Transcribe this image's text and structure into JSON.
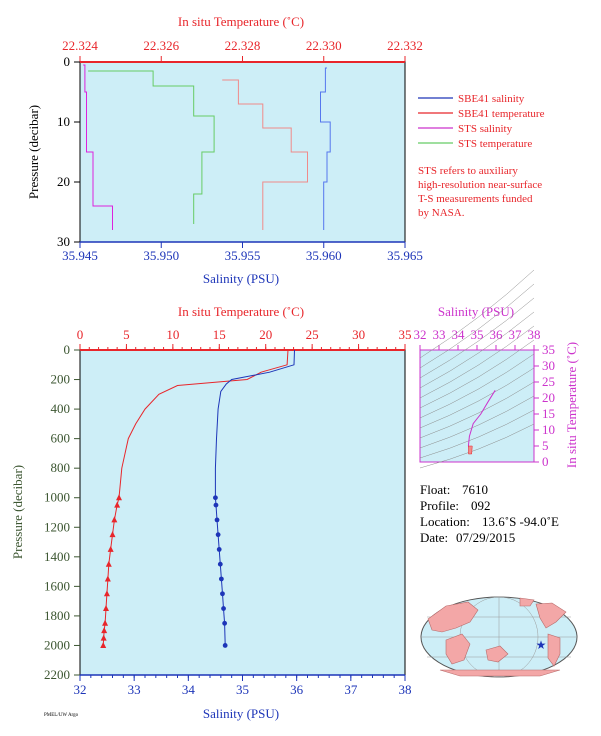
{
  "colors": {
    "panel_bg": "#cdeef7",
    "red": "#e8262b",
    "blue": "#1d35b8",
    "green_axis": "#3b5530",
    "magenta": "#cc33cc",
    "sts_salinity": "#dd22dd",
    "sts_temperature": "#66cc66",
    "sbe41_temperature_light": "#f08a8a",
    "sbe41_salinity_light": "#5577ee"
  },
  "top_panel": {
    "top_axis_label": "In situ Temperature (˚C)",
    "bottom_axis_label": "Salinity (PSU)",
    "left_axis_label": "Pressure (decibar)",
    "top_ticks": [
      "22.324",
      "22.326",
      "22.328",
      "22.330",
      "22.332"
    ],
    "bottom_ticks": [
      "35.945",
      "35.950",
      "35.955",
      "35.960",
      "35.965"
    ],
    "left_ticks": [
      "0",
      "10",
      "20",
      "30"
    ],
    "legend": [
      {
        "label": "SBE41 salinity",
        "color": "#1d35b8"
      },
      {
        "label": "SBE41 temperature",
        "color": "#e8262b"
      },
      {
        "label": "STS salinity",
        "color": "#cc33cc"
      },
      {
        "label": "STS temperature",
        "color": "#66cc66"
      }
    ],
    "note_lines": [
      "STS refers to auxiliary",
      "high-resolution near-surface",
      "T-S measurements funded",
      "by NASA."
    ]
  },
  "main_panel": {
    "top_axis_label": "In situ Temperature (˚C)",
    "bottom_axis_label": "Salinity (PSU)",
    "left_axis_label": "Pressure (decibar)",
    "top_ticks": [
      "0",
      "5",
      "10",
      "15",
      "20",
      "25",
      "30",
      "35"
    ],
    "bottom_ticks": [
      "32",
      "33",
      "34",
      "35",
      "36",
      "37",
      "38"
    ],
    "left_ticks": [
      "0",
      "200",
      "400",
      "600",
      "800",
      "1000",
      "1200",
      "1400",
      "1600",
      "1800",
      "2000",
      "2200"
    ]
  },
  "ts_panel": {
    "top_axis_label": "Salinity (PSU)",
    "right_axis_label": "In situ Temperature (˚C)",
    "top_ticks": [
      "32",
      "33",
      "34",
      "35",
      "36",
      "37",
      "38"
    ],
    "right_ticks": [
      "0",
      "5",
      "10",
      "15",
      "20",
      "25",
      "30",
      "35"
    ]
  },
  "info": {
    "float_label": "Float:",
    "float_value": "7610",
    "profile_label": "Profile:",
    "profile_value": "092",
    "location_label": "Location:",
    "location_value": "13.6˚S  -94.0˚E",
    "date_label": "Date:",
    "date_value": "07/29/2015"
  },
  "footer_tag": "PMEL/UW Argo",
  "chart_data": [
    {
      "type": "line",
      "panel": "top",
      "description_axes": {
        "x_top": "In situ Temperature (˚C)",
        "x_bottom": "Salinity (PSU)",
        "y": "Pressure (decibar)"
      },
      "xlim_temperature": [
        22.324,
        22.332
      ],
      "xlim_salinity": [
        35.945,
        35.965
      ],
      "ylim": [
        30,
        0
      ],
      "series": [
        {
          "name": "SBE41 salinity",
          "x": [
            35.9602,
            35.9601,
            35.9598,
            35.9604,
            35.9602,
            35.96
          ],
          "y": [
            1,
            5,
            10,
            15,
            20,
            28
          ]
        },
        {
          "name": "SBE41 temperature",
          "x": [
            22.3275,
            22.3279,
            22.3285,
            22.3292,
            22.3296,
            22.3285
          ],
          "y": [
            3,
            7,
            11,
            15,
            20,
            28
          ]
        },
        {
          "name": "STS salinity",
          "x": [
            35.9452,
            35.9453,
            35.9454,
            35.9458,
            35.947
          ],
          "y": [
            0.5,
            5,
            15,
            24,
            28
          ]
        },
        {
          "name": "STS temperature",
          "x": [
            22.3242,
            22.3258,
            22.3268,
            22.3273,
            22.327,
            22.3268
          ],
          "y": [
            1.5,
            4,
            9,
            15,
            22,
            27
          ]
        }
      ]
    },
    {
      "type": "line",
      "panel": "main",
      "xlim_temperature": [
        0,
        35
      ],
      "xlim_salinity": [
        32,
        38
      ],
      "ylim": [
        2200,
        0
      ],
      "series": [
        {
          "name": "SBE41 temperature",
          "temperature": [
            22.4,
            22.3,
            19.5,
            18.0,
            10.5,
            8.5,
            7.0,
            6.0,
            5.2,
            4.5,
            4.2,
            4.0,
            3.7,
            3.5,
            3.3,
            3.1,
            3.0,
            2.9,
            2.8,
            2.7,
            2.6,
            2.55,
            2.5
          ],
          "pressure": [
            0,
            100,
            150,
            200,
            240,
            300,
            400,
            500,
            600,
            800,
            1000,
            1050,
            1150,
            1250,
            1350,
            1450,
            1550,
            1650,
            1750,
            1850,
            1900,
            1950,
            2000
          ]
        },
        {
          "name": "SBE41 salinity",
          "salinity": [
            35.96,
            35.95,
            35.5,
            34.8,
            34.7,
            34.6,
            34.55,
            34.52,
            34.5,
            34.5,
            34.51,
            34.53,
            34.55,
            34.57,
            34.59,
            34.61,
            34.63,
            34.65,
            34.67,
            34.68
          ],
          "pressure": [
            0,
            100,
            150,
            200,
            230,
            280,
            400,
            600,
            800,
            1000,
            1050,
            1150,
            1250,
            1350,
            1450,
            1550,
            1650,
            1750,
            1850,
            2000
          ]
        }
      ]
    },
    {
      "type": "line",
      "panel": "ts",
      "xlim": [
        32,
        38
      ],
      "ylim": [
        0,
        35
      ],
      "series": [
        {
          "name": "T-S",
          "salinity": [
            35.96,
            35.6,
            35.2,
            34.8,
            34.6,
            34.55,
            34.6,
            34.65
          ],
          "temperature": [
            22.4,
            19,
            15,
            12,
            8,
            5,
            4,
            2.5
          ]
        }
      ]
    }
  ]
}
